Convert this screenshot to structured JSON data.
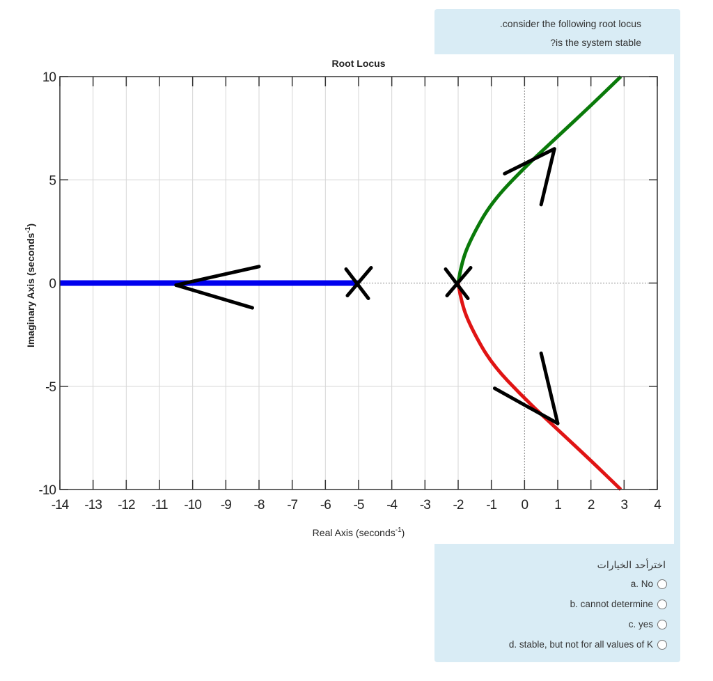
{
  "question": {
    "line1": ".consider the following root locus",
    "line2": "?is the system stable"
  },
  "answers": {
    "prompt": "اخترأحد الخيارات",
    "options": [
      {
        "label": "a. No"
      },
      {
        "label": "b. cannot determine"
      },
      {
        "label": "c. yes"
      },
      {
        "label": "d. stable, but not for all values of K"
      }
    ]
  },
  "chart_data": {
    "type": "line",
    "title": "Root Locus",
    "xlabel": "Real Axis (seconds",
    "xlabel_sup": "-1",
    "xlabel_close": ")",
    "ylabel": "Imaginary Axis (seconds",
    "ylabel_sup": "-1",
    "ylabel_close": ")",
    "xlim": [
      -14,
      4
    ],
    "ylim": [
      -10,
      10
    ],
    "xticks": [
      "-14",
      "-13",
      "-12",
      "-11",
      "-10",
      "-9",
      "-8",
      "-7",
      "-6",
      "-5",
      "-4",
      "-3",
      "-2",
      "-1",
      "0",
      "1",
      "2",
      "3",
      "4"
    ],
    "yticks": [
      "10",
      "5",
      "0",
      "-5",
      "-10"
    ],
    "grid": true,
    "poles": [
      [
        -5,
        0
      ],
      [
        -2,
        0
      ]
    ],
    "series": [
      {
        "color": "#0000ee",
        "x": [
          -5,
          -14
        ],
        "y": [
          0,
          0
        ]
      },
      {
        "color": "#0a7a0a",
        "x": [
          -2,
          -1.9,
          -1.6,
          -1,
          0,
          1,
          2,
          2.9
        ],
        "y": [
          0,
          1,
          2.2,
          3.9,
          5.6,
          7.1,
          8.6,
          10
        ]
      },
      {
        "color": "#e01414",
        "x": [
          -2,
          -1.9,
          -1.6,
          -1,
          0,
          1,
          2,
          2.9
        ],
        "y": [
          0,
          -1,
          -2.2,
          -3.9,
          -5.6,
          -7.1,
          -8.6,
          -10
        ]
      }
    ],
    "arrows": [
      {
        "tip": [
          -10.5,
          -0.1
        ],
        "wing1": [
          -8,
          0.8
        ],
        "wing2": [
          -8.2,
          -1.2
        ]
      },
      {
        "tip": [
          0.9,
          6.5
        ],
        "wing1": [
          -0.6,
          5.3
        ],
        "wing2": [
          0.5,
          3.8
        ]
      },
      {
        "tip": [
          1.0,
          -6.8
        ],
        "wing1": [
          -0.9,
          -5.1
        ],
        "wing2": [
          0.5,
          -3.4
        ]
      }
    ]
  }
}
